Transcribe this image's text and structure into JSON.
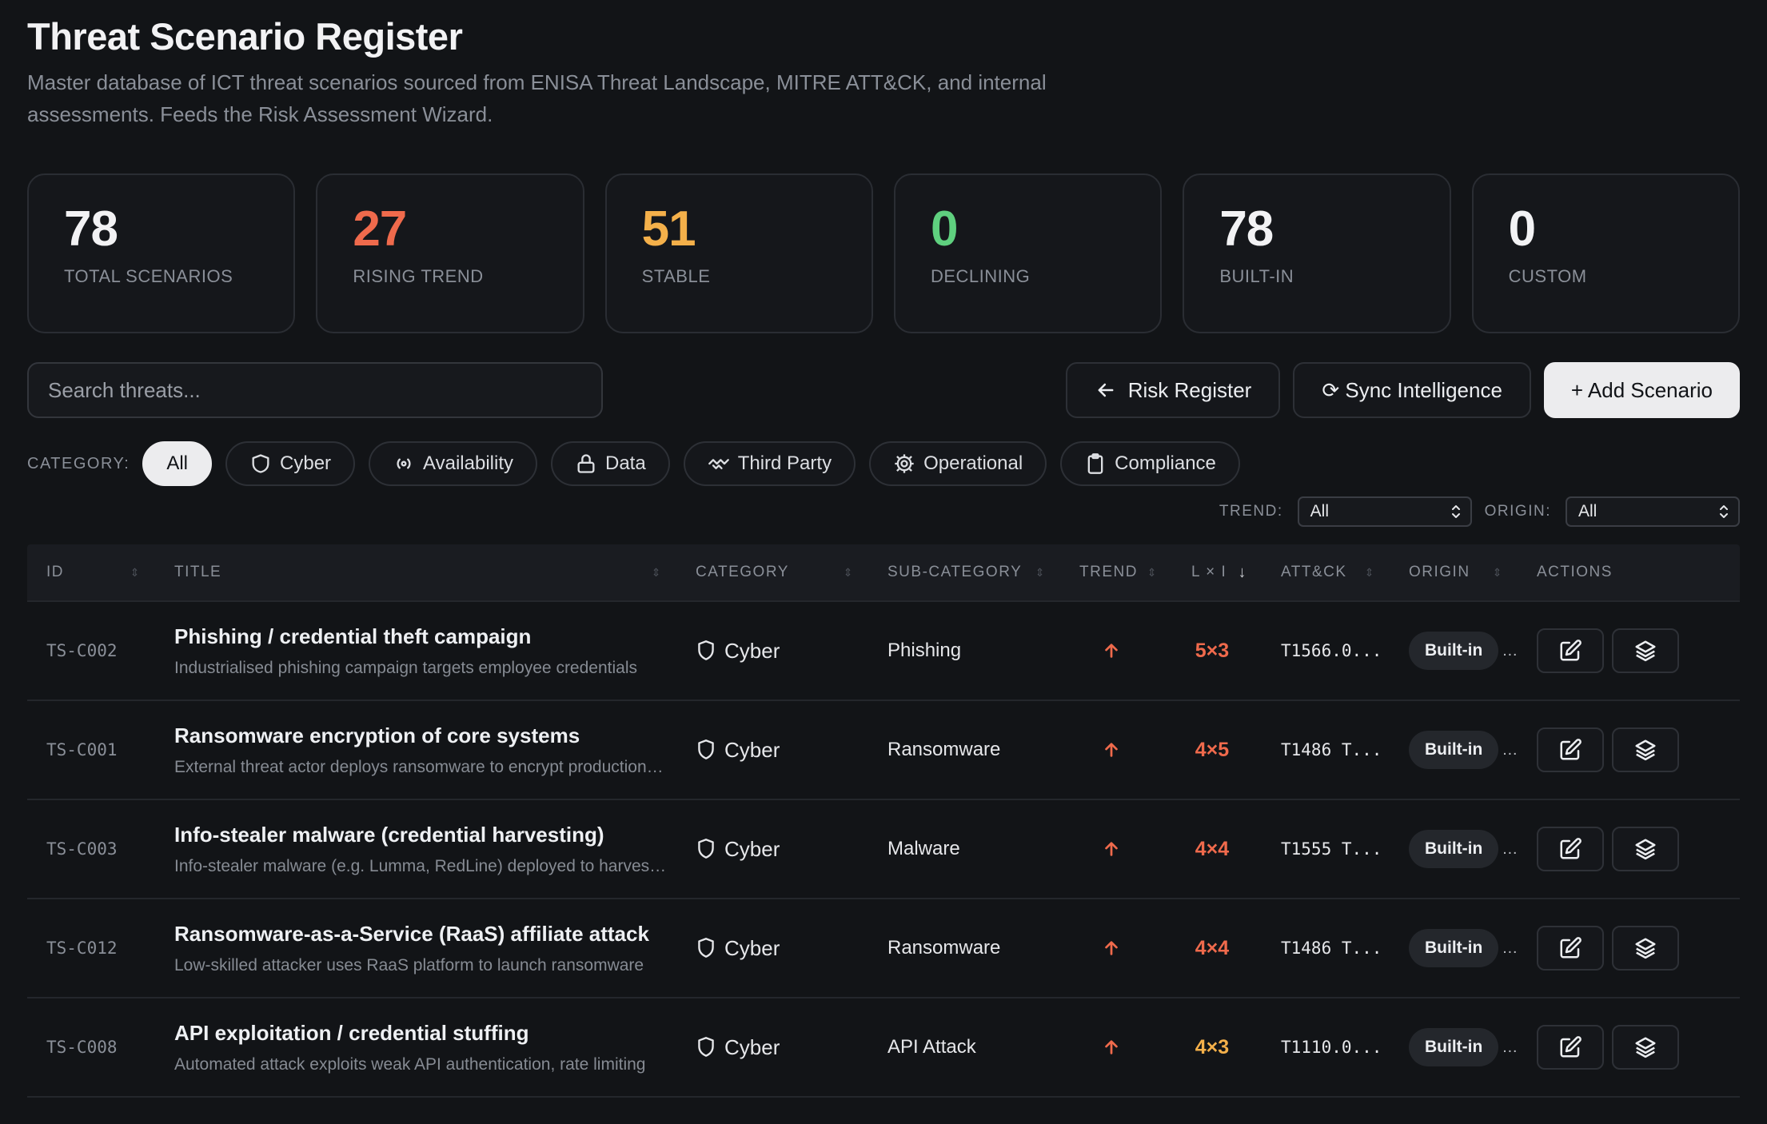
{
  "page": {
    "title": "Threat Scenario Register",
    "subtitle": "Master database of ICT threat scenarios sourced from ENISA Threat Landscape, MITRE ATT&CK, and internal assessments. Feeds the Risk Assessment Wizard."
  },
  "stats": [
    {
      "value": "78",
      "label": "TOTAL SCENARIOS",
      "color": "#f2f2f4"
    },
    {
      "value": "27",
      "label": "RISING TREND",
      "color": "#ef6a4c"
    },
    {
      "value": "51",
      "label": "STABLE",
      "color": "#f4b04a"
    },
    {
      "value": "0",
      "label": "DECLINING",
      "color": "#5fd07f"
    },
    {
      "value": "78",
      "label": "BUILT-IN",
      "color": "#f2f2f4"
    },
    {
      "value": "0",
      "label": "CUSTOM",
      "color": "#f2f2f4"
    }
  ],
  "toolbar": {
    "search_placeholder": "Search threats...",
    "risk_register_label": "Risk Register",
    "sync_label": "⟳ Sync Intelligence",
    "add_label": "+ Add Scenario"
  },
  "categories": {
    "label": "CATEGORY:",
    "items": [
      {
        "label": "All",
        "icon": "none"
      },
      {
        "label": "Cyber",
        "icon": "shield-icon"
      },
      {
        "label": "Availability",
        "icon": "broadcast-icon"
      },
      {
        "label": "Data",
        "icon": "lock-icon"
      },
      {
        "label": "Third Party",
        "icon": "handshake-icon"
      },
      {
        "label": "Operational",
        "icon": "gear-icon"
      },
      {
        "label": "Compliance",
        "icon": "clipboard-icon"
      }
    ]
  },
  "filters": {
    "trend_label": "TREND:",
    "trend_value": "All",
    "origin_label": "ORIGIN:",
    "origin_value": "All"
  },
  "table": {
    "headers": [
      "ID",
      "TITLE",
      "CATEGORY",
      "SUB-CATEGORY",
      "TREND",
      "L × I",
      "ATT&CK",
      "ORIGIN",
      "ACTIONS"
    ],
    "rows": [
      {
        "id": "TS-C002",
        "title": "Phishing / credential theft campaign",
        "desc": "Industrialised phishing campaign targets employee credentials",
        "category": "Cyber",
        "sub": "Phishing",
        "trend": "rising",
        "lxi": "5×3",
        "lxi_color": "#ef6a4c",
        "attack": "T1566.0...",
        "origin": "Built-in"
      },
      {
        "id": "TS-C001",
        "title": "Ransomware encryption of core systems",
        "desc": "External threat actor deploys ransomware to encrypt production systems",
        "category": "Cyber",
        "sub": "Ransomware",
        "trend": "rising",
        "lxi": "4×5",
        "lxi_color": "#ef6a4c",
        "attack": "T1486 T...",
        "origin": "Built-in"
      },
      {
        "id": "TS-C003",
        "title": "Info-stealer malware (credential harvesting)",
        "desc": "Info-stealer malware (e.g. Lumma, RedLine) deployed to harvest credentials",
        "category": "Cyber",
        "sub": "Malware",
        "trend": "rising",
        "lxi": "4×4",
        "lxi_color": "#ef6a4c",
        "attack": "T1555 T...",
        "origin": "Built-in"
      },
      {
        "id": "TS-C012",
        "title": "Ransomware-as-a-Service (RaaS) affiliate attack",
        "desc": "Low-skilled attacker uses RaaS platform to launch ransomware",
        "category": "Cyber",
        "sub": "Ransomware",
        "trend": "rising",
        "lxi": "4×4",
        "lxi_color": "#ef6a4c",
        "attack": "T1486 T...",
        "origin": "Built-in"
      },
      {
        "id": "TS-C008",
        "title": "API exploitation / credential stuffing",
        "desc": "Automated attack exploits weak API authentication, rate limiting",
        "category": "Cyber",
        "sub": "API Attack",
        "trend": "rising",
        "lxi": "4×3",
        "lxi_color": "#f4b04a",
        "attack": "T1110.0...",
        "origin": "Built-in"
      }
    ]
  }
}
